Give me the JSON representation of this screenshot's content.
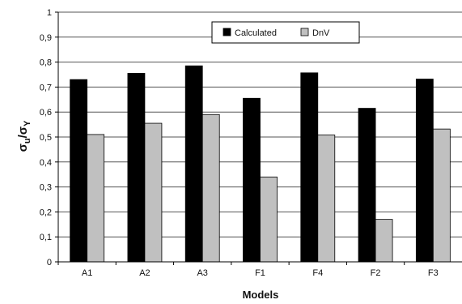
{
  "chart_data": {
    "type": "bar",
    "categories": [
      "A1",
      "A2",
      "A3",
      "F1",
      "F4",
      "F2",
      "F3"
    ],
    "series": [
      {
        "name": "Calculated",
        "values": [
          0.73,
          0.755,
          0.785,
          0.655,
          0.757,
          0.615,
          0.732
        ],
        "color": "#000000"
      },
      {
        "name": "DnV",
        "values": [
          0.51,
          0.555,
          0.59,
          0.34,
          0.508,
          0.17,
          0.532
        ],
        "color": "#c0c0c0"
      }
    ],
    "xlabel": "Models",
    "ylabel": {
      "main": "σ",
      "sub1": "u",
      "slash": "/",
      "main2": "σ",
      "sub2": "Y"
    },
    "ylim": [
      0,
      1
    ],
    "yticks": [
      "0",
      "0,1",
      "0,2",
      "0,3",
      "0,4",
      "0,5",
      "0,6",
      "0,7",
      "0,8",
      "0,9",
      "1"
    ],
    "grid": true,
    "legend_position": "top-center"
  }
}
